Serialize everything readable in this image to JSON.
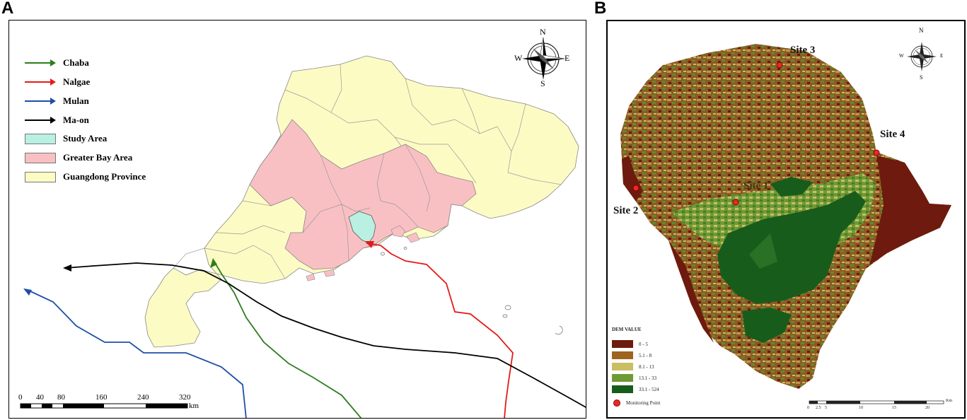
{
  "panel_a": {
    "letter": "A",
    "legend": {
      "tracks": [
        {
          "label": "Chaba",
          "color": "#2e7d1e"
        },
        {
          "label": "Nalgae",
          "color": "#e41a1a"
        },
        {
          "label": "Mulan",
          "color": "#1f4fa8"
        },
        {
          "label": "Ma-on",
          "color": "#000000"
        }
      ],
      "areas": [
        {
          "label": "Study Area",
          "color": "#b9f0e2"
        },
        {
          "label": "Greater Bay Area",
          "color": "#f9c0c3"
        },
        {
          "label": "Guangdong Province",
          "color": "#fdfbc4"
        }
      ]
    },
    "compass": {
      "n": "N",
      "s": "S",
      "e": "E",
      "w": "W"
    },
    "scale_bar": {
      "ticks": [
        "0",
        "40",
        "80",
        "160",
        "240",
        "320"
      ],
      "unit": "km"
    }
  },
  "panel_b": {
    "letter": "B",
    "compass": {
      "n": "N",
      "s": "S",
      "e": "E",
      "w": "W"
    },
    "sites": [
      "Site 3",
      "Site 4",
      "Site 1",
      "Site 2"
    ],
    "legend": {
      "title": "DEM VALUE",
      "classes": [
        {
          "label": "0 - 5",
          "color": "#6e1a0e"
        },
        {
          "label": "5.1 - 8",
          "color": "#a0621f"
        },
        {
          "label": "8.1 - 13",
          "color": "#c9be63"
        },
        {
          "label": "13.1 - 33",
          "color": "#6d9a35"
        },
        {
          "label": "33.1 - 524",
          "color": "#185c1c"
        }
      ],
      "monitoring_point": "Monitoring Point"
    },
    "scale_bar": {
      "ticks": [
        "0",
        "2.5",
        "5",
        "10",
        "15",
        "20"
      ],
      "unit": "Km"
    }
  }
}
